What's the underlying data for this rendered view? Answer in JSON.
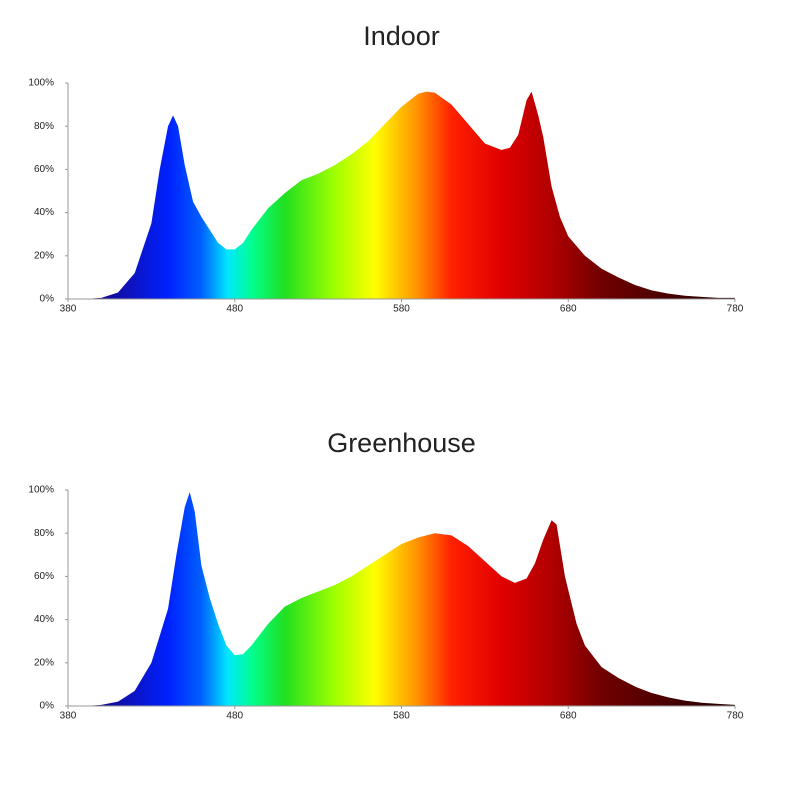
{
  "chart_data": [
    {
      "type": "area",
      "title": "Indoor",
      "x": [
        380,
        390,
        400,
        410,
        420,
        430,
        435,
        440,
        443,
        446,
        450,
        455,
        460,
        465,
        470,
        475,
        480,
        485,
        490,
        500,
        510,
        520,
        530,
        540,
        550,
        560,
        570,
        580,
        590,
        595,
        600,
        610,
        620,
        630,
        640,
        645,
        650,
        655,
        658,
        662,
        665,
        670,
        675,
        680,
        690,
        700,
        710,
        720,
        730,
        740,
        750,
        760,
        770,
        780
      ],
      "values": [
        0,
        0,
        0.5,
        3,
        12,
        35,
        60,
        80,
        85,
        80,
        62,
        45,
        38,
        32,
        26,
        23,
        23,
        26,
        32,
        42,
        49,
        55,
        58,
        62,
        67,
        73,
        81,
        89,
        95,
        96,
        95.5,
        90,
        81,
        72,
        69,
        70,
        76,
        92,
        96,
        85,
        75,
        52,
        38,
        29,
        20,
        14,
        10,
        6.5,
        4,
        2.5,
        1.5,
        1,
        0.5,
        0.5
      ],
      "xlim": [
        380,
        780
      ],
      "xticks": [
        380,
        480,
        580,
        680,
        780
      ],
      "ylim": [
        0,
        100
      ],
      "yticks": [
        {
          "value": 0,
          "label": "0%"
        },
        {
          "value": 20,
          "label": "20%"
        },
        {
          "value": 40,
          "label": "40%"
        },
        {
          "value": 60,
          "label": "60%"
        },
        {
          "value": 80,
          "label": "80%"
        },
        {
          "value": 100,
          "label": "100%"
        }
      ]
    },
    {
      "type": "area",
      "title": "Greenhouse",
      "x": [
        380,
        390,
        400,
        410,
        420,
        430,
        440,
        445,
        450,
        453,
        456,
        460,
        465,
        470,
        475,
        480,
        485,
        490,
        500,
        510,
        520,
        530,
        540,
        550,
        560,
        570,
        580,
        590,
        600,
        610,
        620,
        630,
        640,
        648,
        655,
        660,
        665,
        670,
        673,
        678,
        685,
        690,
        700,
        710,
        720,
        730,
        740,
        750,
        760,
        770,
        780
      ],
      "values": [
        0,
        0,
        0.5,
        2,
        7,
        20,
        45,
        70,
        92,
        99,
        90,
        65,
        50,
        38,
        28,
        23.5,
        24,
        28,
        38,
        46,
        50,
        53,
        56,
        60,
        65,
        70,
        75,
        78,
        80,
        79,
        74,
        67,
        60,
        57,
        59,
        66,
        77,
        86,
        84,
        60,
        38,
        28,
        18,
        13,
        9,
        6,
        4,
        2.5,
        1.5,
        1,
        0.5
      ],
      "xlim": [
        380,
        780
      ],
      "xticks": [
        380,
        480,
        580,
        680,
        780
      ],
      "ylim": [
        0,
        100
      ],
      "yticks": [
        {
          "value": 0,
          "label": "0%"
        },
        {
          "value": 20,
          "label": "20%"
        },
        {
          "value": 40,
          "label": "40%"
        },
        {
          "value": 60,
          "label": "60%"
        },
        {
          "value": 80,
          "label": "80%"
        },
        {
          "value": 100,
          "label": "100%"
        }
      ]
    }
  ]
}
